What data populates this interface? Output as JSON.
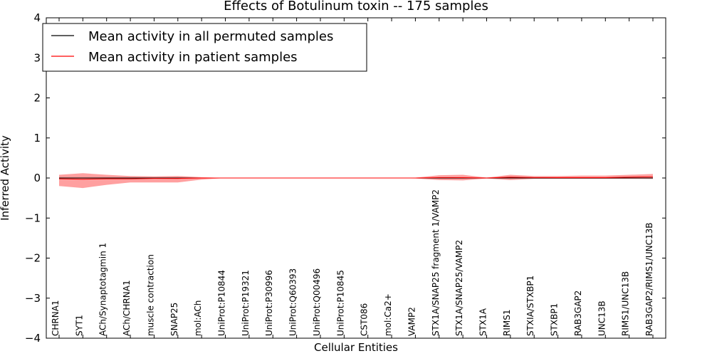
{
  "chart_data": {
    "type": "line",
    "title": "Effects of Botulinum toxin -- 175 samples",
    "xlabel": "Cellular Entities",
    "ylabel": "Inferred Activity",
    "ylim": [
      -4,
      4
    ],
    "yticks": [
      4,
      3,
      2,
      1,
      0,
      -1,
      -2,
      -3,
      -4
    ],
    "ytick_labels": [
      "4",
      "3",
      "2",
      "1",
      "0",
      "−1",
      "−2",
      "−3",
      "−4"
    ],
    "grid": false,
    "legend_position": "top-left",
    "categories": [
      "CHRNA1",
      "SYT1",
      "ACh/Synaptotagmin 1",
      "ACh/CHRNA1",
      "muscle contraction",
      "SNAP25",
      "mol:ACh",
      "UniProt:P10844",
      "UniProt:P19321",
      "UniProt:P30996",
      "UniProt:Q60393",
      "UniProt:Q00496",
      "UniProt:P10845",
      "CST086",
      "mol:Ca2+",
      "VAMP2",
      "STX1A/SNAP25 fragment 1/VAMP2",
      "STX1A/SNAP25/VAMP2",
      "STX1A",
      "RIMS1",
      "STXIA/STXBP1",
      "STXBP1",
      "RAB3GAP2",
      "UNC13B",
      "RIMS1/UNC13B",
      "RAB3GAP2/RIMS1/UNC13B"
    ],
    "series": [
      {
        "name": "Mean activity in all permuted samples",
        "color": "#000000",
        "values": [
          0,
          0,
          0,
          0,
          0,
          0,
          0,
          0,
          0,
          0,
          0,
          0,
          0,
          0,
          0,
          0,
          0,
          0,
          0,
          0,
          0,
          0,
          0,
          0,
          0,
          0
        ],
        "band_upper": [
          0.03,
          0.03,
          0.03,
          0.03,
          0.03,
          0.03,
          0.02,
          0,
          0,
          0,
          0,
          0,
          0,
          0,
          0,
          0,
          0.02,
          0.02,
          0.02,
          0.02,
          0.02,
          0.02,
          0.02,
          0.02,
          0.02,
          0.03
        ],
        "band_lower": [
          -0.03,
          -0.03,
          -0.03,
          -0.03,
          -0.03,
          -0.03,
          -0.02,
          0,
          0,
          0,
          0,
          0,
          0,
          0,
          0,
          0,
          -0.02,
          -0.02,
          -0.02,
          -0.02,
          -0.02,
          -0.02,
          -0.02,
          -0.02,
          -0.02,
          -0.03
        ],
        "band_color": "#cccccc"
      },
      {
        "name": "Mean activity in patient samples",
        "color": "#ff0000",
        "values": [
          -0.02,
          -0.03,
          -0.02,
          -0.02,
          -0.01,
          -0.01,
          0,
          0,
          0,
          0,
          0,
          0,
          0,
          0,
          0,
          0,
          0.01,
          0.01,
          0,
          0.02,
          0.01,
          0.01,
          0.01,
          0.01,
          0.02,
          0.03
        ],
        "band_upper": [
          0.08,
          0.12,
          0.08,
          0.05,
          0.04,
          0.05,
          0.02,
          0,
          0,
          0,
          0,
          0,
          0,
          0,
          0,
          0.01,
          0.07,
          0.08,
          0.01,
          0.08,
          0.05,
          0.05,
          0.06,
          0.06,
          0.08,
          0.1
        ],
        "band_lower": [
          -0.2,
          -0.25,
          -0.17,
          -0.11,
          -0.11,
          -0.11,
          -0.04,
          0,
          0,
          0,
          0,
          0,
          0,
          0,
          0,
          -0.01,
          -0.05,
          -0.06,
          -0.01,
          -0.05,
          -0.02,
          -0.02,
          -0.02,
          -0.02,
          -0.02,
          -0.02
        ],
        "band_color": "#ff8080"
      }
    ]
  }
}
